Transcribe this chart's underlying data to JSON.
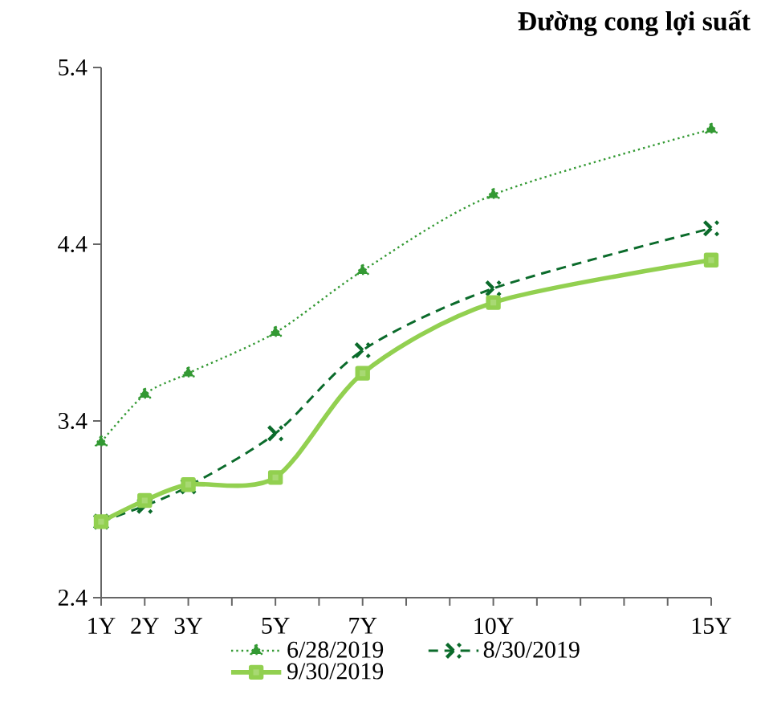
{
  "chart_data": {
    "type": "line",
    "title": "Đường cong lợi suất",
    "x": [
      1,
      2,
      3,
      5,
      7,
      10,
      15
    ],
    "xlim": [
      1,
      15
    ],
    "xticks": [
      {
        "value": 1,
        "label": "1Y"
      },
      {
        "value": 2,
        "label": "2Y"
      },
      {
        "value": 3,
        "label": "3Y"
      },
      {
        "value": 4,
        "label": null
      },
      {
        "value": 5,
        "label": "5Y"
      },
      {
        "value": 6,
        "label": null
      },
      {
        "value": 7,
        "label": "7Y"
      },
      {
        "value": 8,
        "label": null
      },
      {
        "value": 9,
        "label": null
      },
      {
        "value": 10,
        "label": "10Y"
      },
      {
        "value": 11,
        "label": null
      },
      {
        "value": 12,
        "label": null
      },
      {
        "value": 13,
        "label": null
      },
      {
        "value": 14,
        "label": null
      },
      {
        "value": 15,
        "label": "15Y"
      }
    ],
    "ylim": [
      2.4,
      5.4
    ],
    "yticks": [
      2.4,
      3.4,
      4.4,
      5.4
    ],
    "legend": "bottom",
    "series": [
      {
        "name": "6/28/2019",
        "color": "#339933",
        "marker": "triangle",
        "line_style": "dotted",
        "values": [
          3.28,
          3.55,
          3.67,
          3.9,
          4.25,
          4.68,
          5.05
        ]
      },
      {
        "name": "8/30/2019",
        "color": "#0b6b2b",
        "marker": "cross",
        "line_style": "dashed",
        "values": [
          2.83,
          2.92,
          3.03,
          3.33,
          3.8,
          4.15,
          4.49
        ]
      },
      {
        "name": "9/30/2019",
        "color": "#92d050",
        "marker": "square",
        "line_style": "solid",
        "values": [
          2.83,
          2.95,
          3.04,
          3.08,
          3.67,
          4.07,
          4.31
        ]
      }
    ]
  }
}
